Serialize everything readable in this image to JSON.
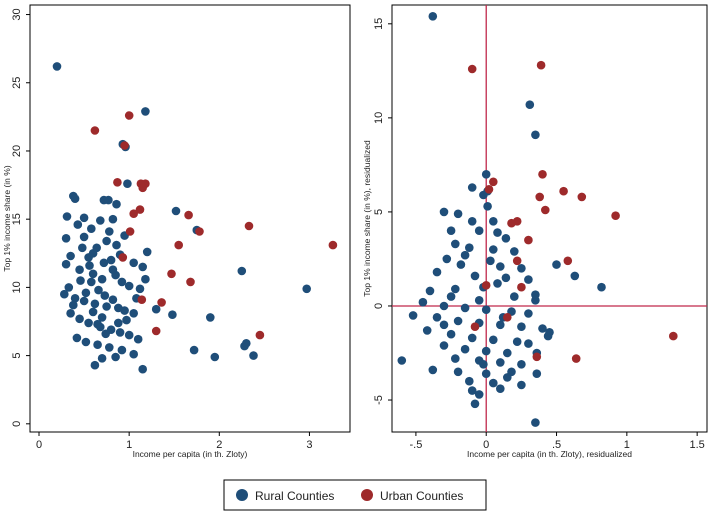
{
  "colors": {
    "rural": "#1f4e79",
    "urban": "#9e2a2b",
    "refline": "#c0284b",
    "axis": "#000000"
  },
  "legend": {
    "rural_label": "Rural Counties",
    "urban_label": "Urban Counties"
  },
  "chart_data": [
    {
      "type": "scatter",
      "title": "",
      "xlabel": "Income per capita (in th. Zloty)",
      "ylabel": "Top 1% income share (in %)",
      "xlim": [
        -0.1,
        3.45
      ],
      "ylim": [
        -0.6,
        30.7
      ],
      "xticks": [
        0,
        1,
        2,
        3
      ],
      "yticks": [
        0,
        5,
        10,
        15,
        20,
        25,
        30
      ],
      "reference_lines": [],
      "series": [
        {
          "name": "Rural Counties",
          "color_key": "rural",
          "points": [
            [
              0.2,
              26.2
            ],
            [
              1.18,
              22.9
            ],
            [
              0.93,
              20.5
            ],
            [
              0.96,
              20.3
            ],
            [
              0.38,
              16.7
            ],
            [
              0.4,
              16.5
            ],
            [
              0.77,
              16.4
            ],
            [
              0.72,
              16.4
            ],
            [
              0.86,
              16.1
            ],
            [
              0.98,
              17.6
            ],
            [
              0.31,
              15.2
            ],
            [
              0.5,
              15.1
            ],
            [
              0.68,
              14.9
            ],
            [
              0.82,
              15.0
            ],
            [
              0.43,
              14.6
            ],
            [
              0.58,
              14.3
            ],
            [
              1.52,
              15.6
            ],
            [
              0.3,
              13.6
            ],
            [
              0.5,
              13.7
            ],
            [
              0.75,
              13.4
            ],
            [
              0.95,
              13.8
            ],
            [
              1.2,
              12.6
            ],
            [
              1.75,
              14.2
            ],
            [
              0.35,
              12.3
            ],
            [
              0.55,
              12.2
            ],
            [
              0.8,
              12.0
            ],
            [
              1.05,
              11.8
            ],
            [
              1.15,
              11.5
            ],
            [
              2.25,
              11.2
            ],
            [
              2.97,
              9.9
            ],
            [
              0.3,
              11.7
            ],
            [
              0.45,
              11.3
            ],
            [
              0.6,
              11.0
            ],
            [
              0.7,
              10.6
            ],
            [
              0.85,
              10.9
            ],
            [
              0.92,
              10.4
            ],
            [
              1.0,
              10.1
            ],
            [
              1.12,
              9.9
            ],
            [
              0.28,
              9.5
            ],
            [
              0.4,
              9.2
            ],
            [
              0.5,
              9.0
            ],
            [
              0.62,
              8.8
            ],
            [
              0.75,
              8.6
            ],
            [
              0.88,
              8.5
            ],
            [
              0.95,
              8.3
            ],
            [
              1.05,
              8.1
            ],
            [
              1.3,
              8.4
            ],
            [
              1.48,
              8.0
            ],
            [
              1.9,
              7.8
            ],
            [
              0.35,
              8.1
            ],
            [
              0.45,
              7.7
            ],
            [
              0.55,
              7.4
            ],
            [
              0.68,
              7.1
            ],
            [
              0.8,
              6.9
            ],
            [
              0.9,
              6.7
            ],
            [
              1.0,
              6.5
            ],
            [
              1.1,
              6.2
            ],
            [
              0.42,
              6.3
            ],
            [
              0.52,
              6.0
            ],
            [
              0.65,
              5.8
            ],
            [
              0.78,
              5.6
            ],
            [
              0.92,
              5.4
            ],
            [
              1.05,
              5.1
            ],
            [
              1.15,
              4.0
            ],
            [
              0.7,
              4.8
            ],
            [
              0.85,
              4.9
            ],
            [
              0.62,
              4.3
            ],
            [
              1.72,
              5.4
            ],
            [
              1.95,
              4.9
            ],
            [
              2.28,
              5.7
            ],
            [
              2.3,
              5.9
            ],
            [
              2.38,
              5.0
            ],
            [
              0.48,
              12.9
            ],
            [
              0.6,
              12.5
            ],
            [
              0.72,
              11.8
            ],
            [
              0.82,
              11.3
            ],
            [
              0.58,
              10.4
            ],
            [
              0.66,
              9.8
            ],
            [
              0.73,
              9.4
            ],
            [
              0.82,
              9.1
            ],
            [
              0.6,
              8.2
            ],
            [
              0.7,
              7.8
            ],
            [
              0.33,
              10.0
            ],
            [
              0.38,
              8.7
            ],
            [
              0.52,
              9.6
            ],
            [
              0.46,
              10.5
            ],
            [
              0.56,
              11.6
            ],
            [
              0.64,
              12.9
            ],
            [
              0.9,
              12.4
            ],
            [
              0.86,
              13.1
            ],
            [
              0.78,
              14.1
            ],
            [
              0.65,
              7.3
            ],
            [
              0.74,
              6.6
            ],
            [
              0.88,
              7.4
            ],
            [
              0.97,
              7.6
            ],
            [
              1.08,
              9.2
            ],
            [
              1.18,
              10.6
            ]
          ]
        },
        {
          "name": "Urban Counties",
          "color_key": "urban",
          "points": [
            [
              1.0,
              22.6
            ],
            [
              0.95,
              20.4
            ],
            [
              0.62,
              21.5
            ],
            [
              0.87,
              17.7
            ],
            [
              1.13,
              17.6
            ],
            [
              1.18,
              17.6
            ],
            [
              1.15,
              17.3
            ],
            [
              1.12,
              15.7
            ],
            [
              1.05,
              15.4
            ],
            [
              1.66,
              15.3
            ],
            [
              1.01,
              14.1
            ],
            [
              2.33,
              14.5
            ],
            [
              1.78,
              14.1
            ],
            [
              1.55,
              13.1
            ],
            [
              3.26,
              13.1
            ],
            [
              0.93,
              12.2
            ],
            [
              1.47,
              11.0
            ],
            [
              1.68,
              10.4
            ],
            [
              1.14,
              9.1
            ],
            [
              1.36,
              8.9
            ],
            [
              1.3,
              6.8
            ],
            [
              2.45,
              6.5
            ]
          ]
        }
      ]
    },
    {
      "type": "scatter",
      "title": "",
      "xlabel": "Income per capita (in th. Zloty), residualized",
      "ylabel": "Top 1% income share (in %), residualized",
      "xlim": [
        -0.67,
        1.57
      ],
      "ylim": [
        -6.7,
        16.0
      ],
      "xticks": [
        -0.5,
        0,
        0.5,
        1,
        1.5
      ],
      "xtick_labels": [
        "-.5",
        "0",
        ".5",
        "1",
        "1.5"
      ],
      "yticks": [
        -5,
        0,
        5,
        10,
        15
      ],
      "reference_lines": [
        {
          "axis": "x",
          "value": 0
        },
        {
          "axis": "y",
          "value": 0
        }
      ],
      "series": [
        {
          "name": "Rural Counties",
          "color_key": "rural",
          "points": [
            [
              -0.38,
              15.4
            ],
            [
              0.31,
              10.7
            ],
            [
              0.35,
              9.1
            ],
            [
              0.0,
              7.0
            ],
            [
              -0.1,
              6.3
            ],
            [
              0.01,
              6.1
            ],
            [
              -0.3,
              5.0
            ],
            [
              -0.2,
              4.9
            ],
            [
              0.01,
              5.3
            ],
            [
              -0.1,
              4.5
            ],
            [
              -0.25,
              4.0
            ],
            [
              -0.05,
              4.0
            ],
            [
              0.08,
              3.9
            ],
            [
              0.14,
              3.6
            ],
            [
              -0.22,
              3.3
            ],
            [
              -0.12,
              3.1
            ],
            [
              0.05,
              3.0
            ],
            [
              0.2,
              2.9
            ],
            [
              -0.28,
              2.5
            ],
            [
              -0.18,
              2.2
            ],
            [
              0.03,
              2.4
            ],
            [
              0.1,
              2.1
            ],
            [
              0.25,
              2.0
            ],
            [
              0.5,
              2.2
            ],
            [
              -0.35,
              1.8
            ],
            [
              -0.08,
              1.6
            ],
            [
              0.14,
              1.5
            ],
            [
              0.3,
              1.4
            ],
            [
              0.63,
              1.6
            ],
            [
              0.82,
              1.0
            ],
            [
              -0.4,
              0.8
            ],
            [
              -0.22,
              0.9
            ],
            [
              -0.02,
              1.0
            ],
            [
              0.2,
              0.5
            ],
            [
              0.35,
              0.3
            ],
            [
              -0.45,
              0.2
            ],
            [
              -0.3,
              0.0
            ],
            [
              -0.15,
              -0.1
            ],
            [
              0.0,
              -0.2
            ],
            [
              0.18,
              -0.3
            ],
            [
              0.3,
              -0.4
            ],
            [
              -0.52,
              -0.5
            ],
            [
              -0.35,
              -0.6
            ],
            [
              -0.2,
              -0.8
            ],
            [
              -0.05,
              -0.9
            ],
            [
              0.1,
              -1.0
            ],
            [
              0.25,
              -1.1
            ],
            [
              0.4,
              -1.2
            ],
            [
              0.44,
              -1.6
            ],
            [
              -0.42,
              -1.3
            ],
            [
              -0.25,
              -1.5
            ],
            [
              -0.1,
              -1.7
            ],
            [
              0.05,
              -1.8
            ],
            [
              0.22,
              -1.9
            ],
            [
              -0.3,
              -2.1
            ],
            [
              -0.15,
              -2.3
            ],
            [
              0.0,
              -2.4
            ],
            [
              0.15,
              -2.5
            ],
            [
              0.36,
              -2.5
            ],
            [
              -0.22,
              -2.8
            ],
            [
              -0.05,
              -2.9
            ],
            [
              0.1,
              -3.0
            ],
            [
              0.25,
              -3.1
            ],
            [
              -0.6,
              -2.9
            ],
            [
              -0.38,
              -3.4
            ],
            [
              -0.2,
              -3.5
            ],
            [
              0.0,
              -3.6
            ],
            [
              0.18,
              -3.5
            ],
            [
              0.36,
              -3.6
            ],
            [
              -0.12,
              -4.0
            ],
            [
              0.05,
              -4.1
            ],
            [
              0.25,
              -4.2
            ],
            [
              -0.1,
              -4.5
            ],
            [
              0.1,
              -4.4
            ],
            [
              -0.05,
              -4.7
            ],
            [
              -0.08,
              -5.2
            ],
            [
              0.35,
              -6.2
            ],
            [
              -0.02,
              5.9
            ],
            [
              0.05,
              4.5
            ],
            [
              -0.15,
              2.7
            ],
            [
              0.08,
              1.2
            ],
            [
              -0.05,
              0.3
            ],
            [
              0.12,
              -0.6
            ],
            [
              -0.3,
              -1.0
            ],
            [
              0.3,
              -2.0
            ],
            [
              -0.02,
              -3.1
            ],
            [
              0.15,
              -3.8
            ],
            [
              -0.25,
              0.5
            ],
            [
              0.45,
              -1.4
            ],
            [
              0.35,
              0.6
            ]
          ]
        },
        {
          "name": "Urban Counties",
          "color_key": "urban",
          "points": [
            [
              -0.1,
              12.6
            ],
            [
              0.39,
              12.8
            ],
            [
              0.4,
              7.0
            ],
            [
              0.05,
              6.6
            ],
            [
              0.02,
              6.2
            ],
            [
              0.55,
              6.1
            ],
            [
              0.38,
              5.8
            ],
            [
              0.68,
              5.8
            ],
            [
              0.42,
              5.1
            ],
            [
              0.92,
              4.8
            ],
            [
              0.22,
              4.5
            ],
            [
              0.18,
              4.4
            ],
            [
              0.3,
              3.5
            ],
            [
              0.58,
              2.4
            ],
            [
              0.22,
              2.4
            ],
            [
              0.25,
              1.0
            ],
            [
              0.0,
              1.1
            ],
            [
              -0.08,
              -1.1
            ],
            [
              0.36,
              -2.7
            ],
            [
              0.64,
              -2.8
            ],
            [
              1.33,
              -1.6
            ],
            [
              0.15,
              -0.6
            ]
          ]
        }
      ]
    }
  ]
}
